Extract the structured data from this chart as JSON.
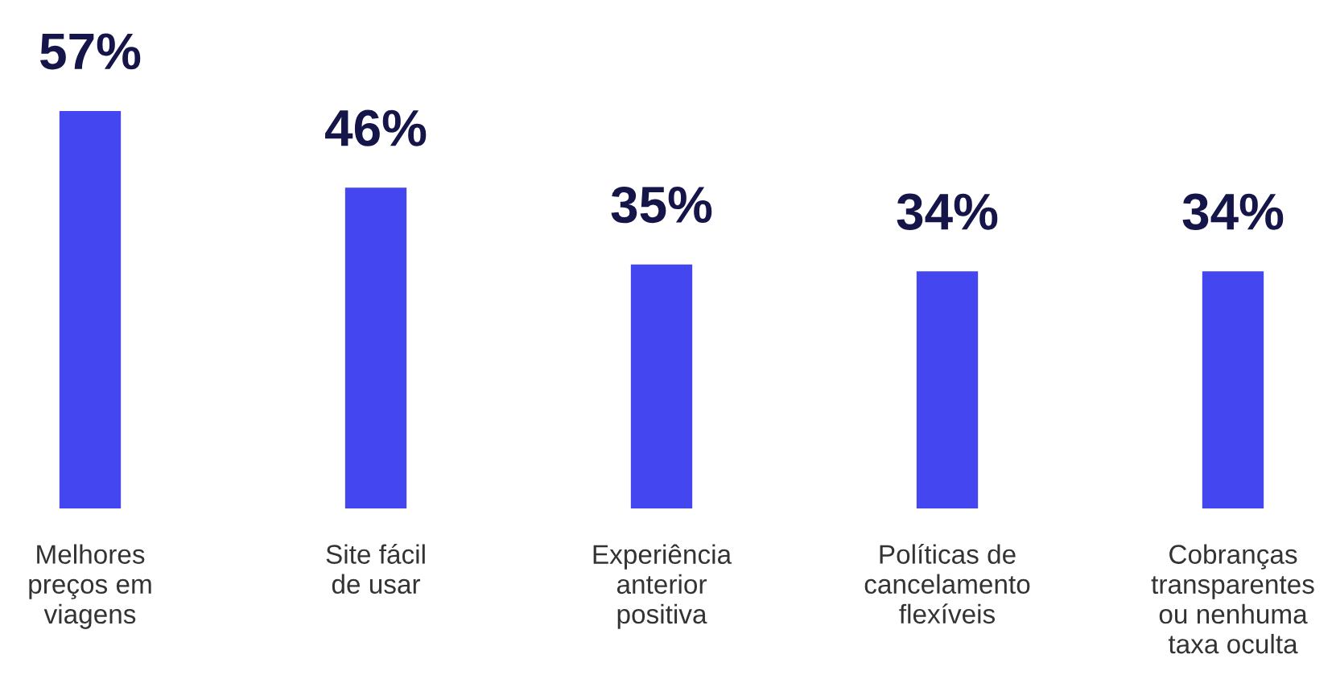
{
  "chart_data": {
    "type": "bar",
    "categories": [
      "Melhores\npreços em\nviagens",
      "Site fácil\nde usar",
      "Experiência\nanterior\npositiva",
      "Políticas de\ncancelamento\nflexíveis",
      "Cobranças\ntransparentes\nou nenhuma\ntaxa oculta"
    ],
    "values": [
      57,
      46,
      35,
      34,
      34
    ],
    "value_labels": [
      "57%",
      "46%",
      "35%",
      "34%",
      "34%"
    ],
    "color": "#4447ef",
    "grid": false,
    "legend": false
  }
}
